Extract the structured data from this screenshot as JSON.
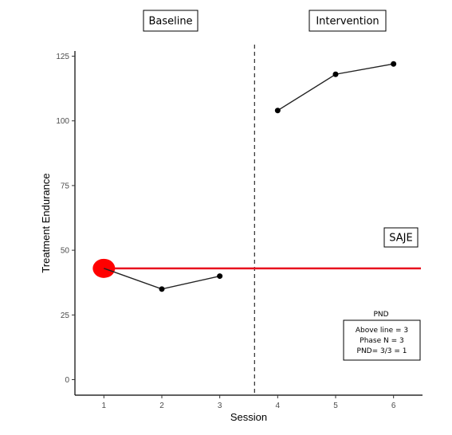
{
  "chart_data": {
    "type": "line",
    "xlabel": "Session",
    "ylabel": "Treatment Endurance",
    "xlim": [
      0.5,
      6.5
    ],
    "ylim": [
      -6,
      127
    ],
    "x_ticks": [
      1,
      2,
      3,
      4,
      5,
      6
    ],
    "y_ticks": [
      0,
      25,
      50,
      75,
      100,
      125
    ],
    "grid": false,
    "phases": [
      {
        "label": "Baseline",
        "x": [
          1,
          2,
          3
        ],
        "y": [
          43,
          35,
          40
        ]
      },
      {
        "label": "Intervention",
        "x": [
          4,
          5,
          6
        ],
        "y": [
          104,
          118,
          122
        ]
      }
    ],
    "phase_change_x": 3.6,
    "reference_line": {
      "y": 43,
      "color": "#e8121f",
      "start_x": 1
    },
    "reference_marker": {
      "x": 1,
      "y": 43,
      "color": "#ff0000"
    },
    "case_label": "SAJE",
    "pnd": {
      "title": "PND",
      "lines": [
        "Above line = 3",
        "Phase N = 3",
        "PND= 3/3 = 1"
      ]
    },
    "colors": {
      "line": "#222222",
      "point": "#000000",
      "reference": "#e8121f"
    }
  }
}
